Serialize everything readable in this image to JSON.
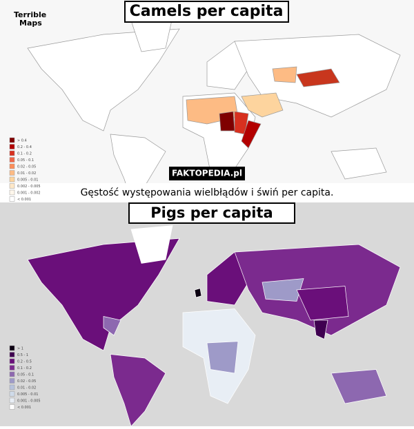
{
  "logo": [
    "Terrible",
    "Maps"
  ],
  "maps": [
    {
      "title": "Camels per capita",
      "legend": [
        {
          "label": "> 0.4",
          "color": "#7f0000"
        },
        {
          "label": "0.2 - 0.4",
          "color": "#b30000"
        },
        {
          "label": "0.1 - 0.2",
          "color": "#d7301f"
        },
        {
          "label": "0.05 - 0.1",
          "color": "#ef6548"
        },
        {
          "label": "0.02 - 0.05",
          "color": "#fc8d59"
        },
        {
          "label": "0.01 - 0.02",
          "color": "#fdbb84"
        },
        {
          "label": "0.005 - 0.01",
          "color": "#fdd49e"
        },
        {
          "label": "0.002 - 0.005",
          "color": "#fee8c8"
        },
        {
          "label": "0.001 - 0.002",
          "color": "#fff7ec"
        },
        {
          "label": "< 0.001",
          "color": "#ffffff"
        }
      ]
    },
    {
      "title": "Pigs per capita",
      "legend": [
        {
          "label": "> 1",
          "color": "#0b0011"
        },
        {
          "label": "0.5 - 1",
          "color": "#3f0050"
        },
        {
          "label": "0.2 - 0.5",
          "color": "#6a0f7a"
        },
        {
          "label": "0.1 - 0.2",
          "color": "#7b2a8e"
        },
        {
          "label": "0.05 - 0.1",
          "color": "#8d68b0"
        },
        {
          "label": "0.02 - 0.05",
          "color": "#9e9ac8"
        },
        {
          "label": "0.01 - 0.02",
          "color": "#b7c3dc"
        },
        {
          "label": "0.005 - 0.01",
          "color": "#cfdbe9"
        },
        {
          "label": "0.001 - 0.005",
          "color": "#e8eef5"
        },
        {
          "label": "< 0.001",
          "color": "#ffffff"
        }
      ]
    }
  ],
  "watermark": "FAKTOPEDIA.pl",
  "caption": "Gęstość występowania wielbłądów i świń per capita."
}
